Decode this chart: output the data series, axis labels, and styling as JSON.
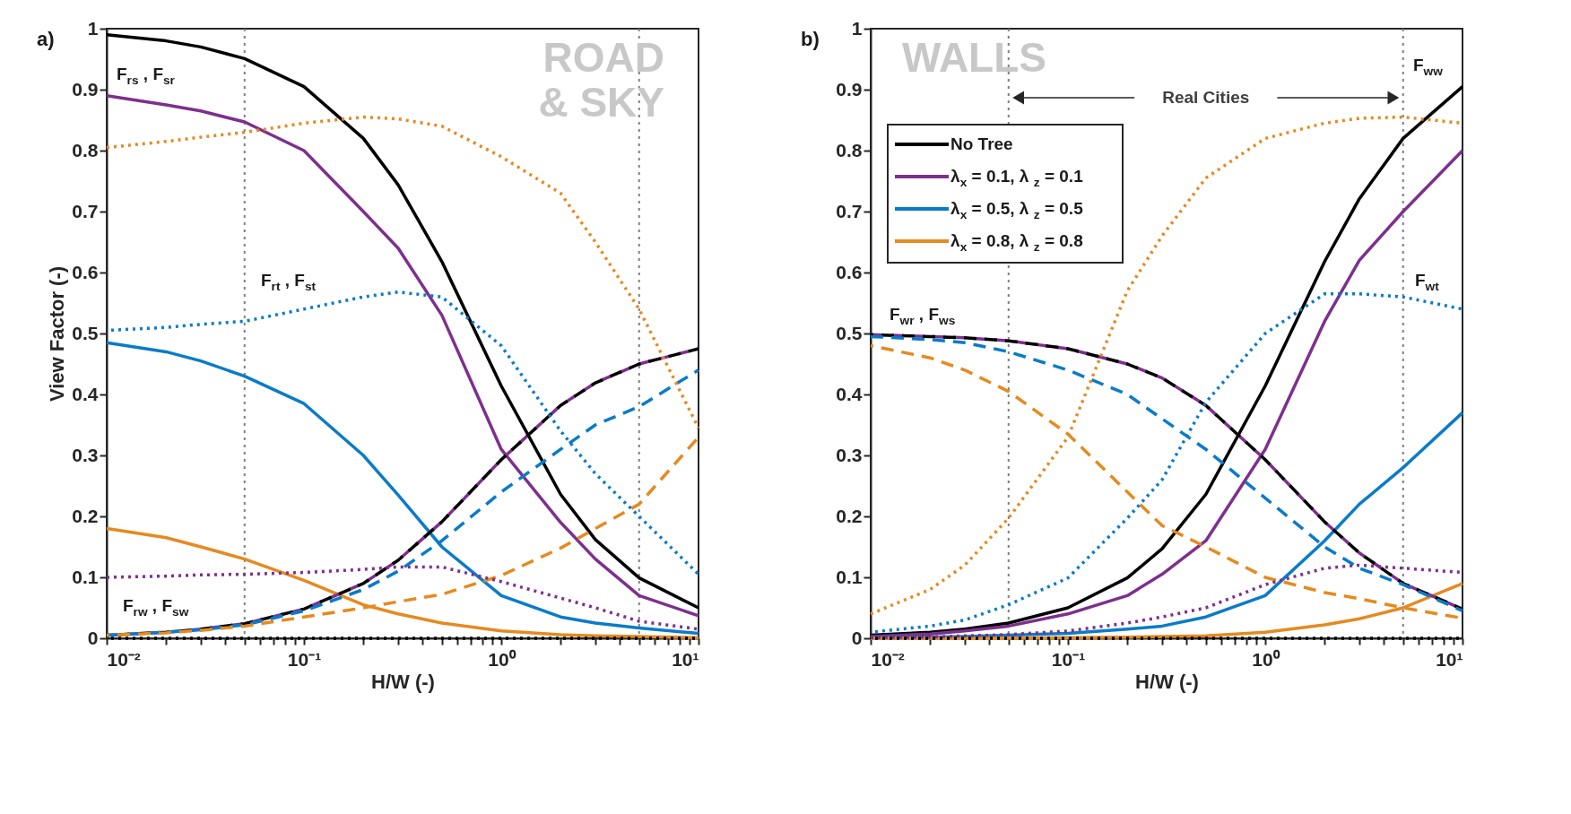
{
  "chart_data": [
    {
      "type": "line",
      "title": "a)",
      "xlabel": "H/W (-)",
      "ylabel": "View Factor (-)",
      "log": "x",
      "grid": false,
      "legend": false,
      "x": [
        0.01,
        0.02,
        0.03,
        0.05,
        0.1,
        0.2,
        0.3,
        0.5,
        1,
        2,
        3,
        5,
        10
      ],
      "xlim": [
        0.01,
        10
      ],
      "xticks": [
        {
          "value": 0.01,
          "label": "10⁻²"
        },
        {
          "value": 0.02,
          "label": null
        },
        {
          "value": 0.03,
          "label": null
        },
        {
          "value": 0.04,
          "label": null
        },
        {
          "value": 0.05,
          "label": null
        },
        {
          "value": 0.06,
          "label": null
        },
        {
          "value": 0.07,
          "label": null
        },
        {
          "value": 0.08,
          "label": null
        },
        {
          "value": 0.09,
          "label": null
        },
        {
          "value": 0.1,
          "label": "10⁻¹"
        },
        {
          "value": 0.2,
          "label": null
        },
        {
          "value": 0.3,
          "label": null
        },
        {
          "value": 0.4,
          "label": null
        },
        {
          "value": 0.5,
          "label": null
        },
        {
          "value": 0.6,
          "label": null
        },
        {
          "value": 0.7,
          "label": null
        },
        {
          "value": 0.8,
          "label": null
        },
        {
          "value": 0.9,
          "label": null
        },
        {
          "value": 1,
          "label": "10⁰"
        },
        {
          "value": 2,
          "label": null
        },
        {
          "value": 3,
          "label": null
        },
        {
          "value": 4,
          "label": null
        },
        {
          "value": 5,
          "label": null
        },
        {
          "value": 6,
          "label": null
        },
        {
          "value": 7,
          "label": null
        },
        {
          "value": 8,
          "label": null
        },
        {
          "value": 9,
          "label": null
        },
        {
          "value": 10,
          "label": "10¹"
        }
      ],
      "ylim": [
        0,
        1
      ],
      "yticks": [
        0,
        0.1,
        0.2,
        0.3,
        0.4,
        0.5,
        0.6,
        0.7,
        0.8,
        0.9,
        1
      ],
      "ref_lines": [
        {
          "axis": "x",
          "value": 0.05,
          "color": "#808080",
          "line_style": "dotted"
        },
        {
          "axis": "x",
          "value": 5,
          "color": "#808080",
          "line_style": "dotted"
        }
      ],
      "annotations": [
        "ROAD\n& SKY",
        "F$_{rs}$ , F$_{sr}$",
        "F$_{rt}$ , F$_{st}$",
        "F$_{rw}$ , F$_{sw}$"
      ],
      "series": [
        {
          "color": "#000000",
          "line_style": "solid",
          "values": [
            0.99,
            0.98,
            0.97,
            0.951,
            0.905,
            0.82,
            0.744,
            0.618,
            0.414,
            0.236,
            0.162,
            0.099,
            0.05
          ]
        },
        {
          "color": "#7e2f8e",
          "line_style": "solid",
          "values": [
            0.89,
            0.875,
            0.865,
            0.847,
            0.8,
            0.7,
            0.64,
            0.53,
            0.31,
            0.19,
            0.13,
            0.07,
            0.037
          ]
        },
        {
          "color": "#0a7bc8",
          "line_style": "solid",
          "values": [
            0.485,
            0.47,
            0.455,
            0.43,
            0.385,
            0.3,
            0.235,
            0.15,
            0.07,
            0.035,
            0.025,
            0.017,
            0.008
          ]
        },
        {
          "color": "#e58a1f",
          "line_style": "solid",
          "values": [
            0.18,
            0.165,
            0.15,
            0.13,
            0.095,
            0.055,
            0.04,
            0.025,
            0.012,
            0.006,
            0.004,
            0.003,
            0.001
          ]
        },
        {
          "color": "#7e2f8e",
          "line_style": "dashed",
          "values": [
            0.005,
            0.01,
            0.015,
            0.024,
            0.048,
            0.09,
            0.128,
            0.191,
            0.293,
            0.382,
            0.419,
            0.45,
            0.475
          ]
        },
        {
          "color": "#000000",
          "line_style": "dashed",
          "values": [
            0.005,
            0.01,
            0.015,
            0.024,
            0.048,
            0.09,
            0.128,
            0.191,
            0.293,
            0.382,
            0.419,
            0.45,
            0.475
          ]
        },
        {
          "color": "#0a7bc8",
          "line_style": "dashed",
          "values": [
            0.005,
            0.01,
            0.014,
            0.022,
            0.045,
            0.08,
            0.11,
            0.16,
            0.24,
            0.31,
            0.35,
            0.38,
            0.44
          ]
        },
        {
          "color": "#e58a1f",
          "line_style": "dashed",
          "values": [
            0.005,
            0.009,
            0.013,
            0.02,
            0.035,
            0.05,
            0.06,
            0.072,
            0.103,
            0.148,
            0.18,
            0.22,
            0.33
          ]
        },
        {
          "color": "#7e2f8e",
          "line_style": "dotted",
          "values": [
            0.1,
            0.102,
            0.104,
            0.105,
            0.108,
            0.113,
            0.117,
            0.117,
            0.093,
            0.066,
            0.05,
            0.028,
            0.015
          ]
        },
        {
          "color": "#0a7bc8",
          "line_style": "dotted",
          "values": [
            0.505,
            0.51,
            0.515,
            0.52,
            0.54,
            0.56,
            0.568,
            0.56,
            0.48,
            0.34,
            0.27,
            0.2,
            0.105
          ]
        },
        {
          "color": "#e58a1f",
          "line_style": "dotted",
          "values": [
            0.805,
            0.815,
            0.822,
            0.83,
            0.845,
            0.855,
            0.852,
            0.84,
            0.79,
            0.73,
            0.65,
            0.54,
            0.345
          ]
        },
        {
          "color": "#000000",
          "line_style": "dotted",
          "values": [
            0,
            0,
            0,
            0,
            0,
            0,
            0,
            0,
            0,
            0,
            0,
            0,
            0
          ]
        }
      ]
    },
    {
      "type": "line",
      "title": "b)",
      "xlabel": "H/W (-)",
      "log": "x",
      "grid": false,
      "legend": "top left",
      "x": [
        0.01,
        0.02,
        0.03,
        0.05,
        0.1,
        0.2,
        0.3,
        0.5,
        1,
        2,
        3,
        5,
        10
      ],
      "xlim": [
        0.01,
        10
      ],
      "xticks": [
        {
          "value": 0.01,
          "label": "10⁻²"
        },
        {
          "value": 0.02,
          "label": null
        },
        {
          "value": 0.03,
          "label": null
        },
        {
          "value": 0.04,
          "label": null
        },
        {
          "value": 0.05,
          "label": null
        },
        {
          "value": 0.06,
          "label": null
        },
        {
          "value": 0.07,
          "label": null
        },
        {
          "value": 0.08,
          "label": null
        },
        {
          "value": 0.09,
          "label": null
        },
        {
          "value": 0.1,
          "label": "10⁻¹"
        },
        {
          "value": 0.2,
          "label": null
        },
        {
          "value": 0.3,
          "label": null
        },
        {
          "value": 0.4,
          "label": null
        },
        {
          "value": 0.5,
          "label": null
        },
        {
          "value": 0.6,
          "label": null
        },
        {
          "value": 0.7,
          "label": null
        },
        {
          "value": 0.8,
          "label": null
        },
        {
          "value": 0.9,
          "label": null
        },
        {
          "value": 1,
          "label": "10⁰"
        },
        {
          "value": 2,
          "label": null
        },
        {
          "value": 3,
          "label": null
        },
        {
          "value": 4,
          "label": null
        },
        {
          "value": 5,
          "label": null
        },
        {
          "value": 6,
          "label": null
        },
        {
          "value": 7,
          "label": null
        },
        {
          "value": 8,
          "label": null
        },
        {
          "value": 9,
          "label": null
        },
        {
          "value": 10,
          "label": "10¹"
        }
      ],
      "ylim": [
        0,
        1
      ],
      "yticks": [
        0,
        0.1,
        0.2,
        0.3,
        0.4,
        0.5,
        0.6,
        0.7,
        0.8,
        0.9,
        1
      ],
      "ref_lines": [
        {
          "axis": "x",
          "value": 0.05,
          "color": "#808080",
          "line_style": "dotted"
        },
        {
          "axis": "x",
          "value": 5,
          "color": "#808080",
          "line_style": "dotted"
        }
      ],
      "annotations": [
        "WALLS",
        "Real Cities",
        "F$_{ww}$",
        "F$_{wt}$",
        "F$_{wr}$ , F$_{ws}$"
      ],
      "series": [
        {
          "name": "No Tree",
          "color": "#000000",
          "line_style": "solid",
          "values": [
            0.005,
            0.01,
            0.015,
            0.025,
            0.05,
            0.099,
            0.147,
            0.236,
            0.414,
            0.618,
            0.721,
            0.82,
            0.905
          ]
        },
        {
          "name": "λ$_{x}$ = 0.1,  λ$_{z}$ = 0.1",
          "color": "#7e2f8e",
          "line_style": "solid",
          "values": [
            0.003,
            0.007,
            0.012,
            0.02,
            0.04,
            0.07,
            0.105,
            0.16,
            0.31,
            0.52,
            0.62,
            0.7,
            0.8
          ]
        },
        {
          "name": "λ$_{x}$ = 0.5,  λ$_{z}$ = 0.5",
          "color": "#0a7bc8",
          "line_style": "solid",
          "values": [
            0.001,
            0.002,
            0.003,
            0.005,
            0.008,
            0.015,
            0.02,
            0.035,
            0.07,
            0.16,
            0.22,
            0.28,
            0.37
          ]
        },
        {
          "name": "λ$_{x}$ = 0.8,  λ$_{z}$ = 0.8",
          "color": "#e58a1f",
          "line_style": "solid",
          "values": [
            0,
            0,
            0,
            0,
            0.001,
            0.002,
            0.003,
            0.004,
            0.01,
            0.022,
            0.032,
            0.05,
            0.09
          ]
        },
        {
          "color": "#7e2f8e",
          "line_style": "dashed",
          "values": [
            0.498,
            0.495,
            0.493,
            0.488,
            0.475,
            0.45,
            0.427,
            0.382,
            0.293,
            0.191,
            0.14,
            0.09,
            0.048
          ]
        },
        {
          "color": "#000000",
          "line_style": "dashed",
          "values": [
            0.498,
            0.495,
            0.493,
            0.488,
            0.475,
            0.45,
            0.427,
            0.382,
            0.293,
            0.191,
            0.14,
            0.09,
            0.048
          ]
        },
        {
          "color": "#0a7bc8",
          "line_style": "dashed",
          "values": [
            0.495,
            0.49,
            0.485,
            0.47,
            0.44,
            0.4,
            0.36,
            0.31,
            0.23,
            0.15,
            0.115,
            0.088,
            0.045
          ]
        },
        {
          "color": "#e58a1f",
          "line_style": "dashed",
          "values": [
            0.48,
            0.46,
            0.44,
            0.405,
            0.335,
            0.24,
            0.185,
            0.15,
            0.1,
            0.075,
            0.065,
            0.05,
            0.033
          ]
        },
        {
          "color": "#7e2f8e",
          "line_style": "dotted",
          "values": [
            0.001,
            0.002,
            0.004,
            0.006,
            0.012,
            0.025,
            0.035,
            0.05,
            0.088,
            0.115,
            0.12,
            0.115,
            0.108
          ]
        },
        {
          "color": "#0a7bc8",
          "line_style": "dotted",
          "values": [
            0.01,
            0.02,
            0.03,
            0.055,
            0.099,
            0.197,
            0.26,
            0.387,
            0.5,
            0.565,
            0.565,
            0.56,
            0.54
          ]
        },
        {
          "color": "#e58a1f",
          "line_style": "dotted",
          "values": [
            0.04,
            0.08,
            0.12,
            0.197,
            0.33,
            0.57,
            0.66,
            0.755,
            0.82,
            0.845,
            0.853,
            0.855,
            0.845
          ]
        },
        {
          "color": "#000000",
          "line_style": "dotted",
          "values": [
            0,
            0,
            0,
            0,
            0,
            0,
            0,
            0,
            0,
            0,
            0,
            0,
            0
          ]
        }
      ]
    }
  ]
}
